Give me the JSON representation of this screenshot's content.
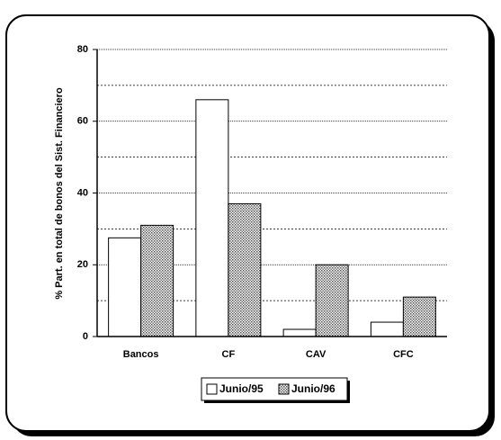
{
  "chart_data": {
    "type": "bar",
    "ylabel": "% Part. en total de bonos del Sist. Financiero",
    "categories": [
      "Bancos",
      "CF",
      "CAV",
      "CFC"
    ],
    "series": [
      {
        "name": "Junio/95",
        "color": "#ffffff",
        "values": [
          27.5,
          66,
          2,
          4
        ]
      },
      {
        "name": "Junio/96",
        "color": "#b8b8b8",
        "values": [
          31,
          37,
          20,
          11
        ]
      }
    ],
    "ylim": [
      0,
      80
    ],
    "yticks": [
      0,
      20,
      40,
      60,
      80
    ],
    "minor_gridlines": [
      10,
      30,
      50,
      70
    ],
    "grid": true
  }
}
